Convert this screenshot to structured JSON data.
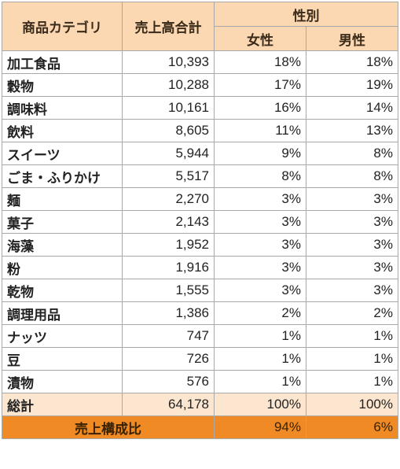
{
  "header": {
    "category": "商品カテゴリ",
    "sales_total": "売上高合計",
    "gender": "性別",
    "female": "女性",
    "male": "男性"
  },
  "rows": [
    {
      "category": "加工食品",
      "sales": "10,393",
      "female": "18%",
      "male": "18%"
    },
    {
      "category": "穀物",
      "sales": "10,288",
      "female": "17%",
      "male": "19%"
    },
    {
      "category": "調味料",
      "sales": "10,161",
      "female": "16%",
      "male": "14%"
    },
    {
      "category": "飲料",
      "sales": "8,605",
      "female": "11%",
      "male": "13%"
    },
    {
      "category": "スイーツ",
      "sales": "5,944",
      "female": "9%",
      "male": "8%"
    },
    {
      "category": "ごま・ふりかけ",
      "sales": "5,517",
      "female": "8%",
      "male": "8%"
    },
    {
      "category": "麺",
      "sales": "2,270",
      "female": "3%",
      "male": "3%"
    },
    {
      "category": "菓子",
      "sales": "2,143",
      "female": "3%",
      "male": "3%"
    },
    {
      "category": "海藻",
      "sales": "1,952",
      "female": "3%",
      "male": "3%"
    },
    {
      "category": "粉",
      "sales": "1,916",
      "female": "3%",
      "male": "3%"
    },
    {
      "category": "乾物",
      "sales": "1,555",
      "female": "3%",
      "male": "3%"
    },
    {
      "category": "調理用品",
      "sales": "1,386",
      "female": "2%",
      "male": "2%"
    },
    {
      "category": "ナッツ",
      "sales": "747",
      "female": "1%",
      "male": "1%"
    },
    {
      "category": "豆",
      "sales": "726",
      "female": "1%",
      "male": "1%"
    },
    {
      "category": "漬物",
      "sales": "576",
      "female": "1%",
      "male": "1%"
    }
  ],
  "total": {
    "category": "総計",
    "sales": "64,178",
    "female": "100%",
    "male": "100%"
  },
  "ratio": {
    "label": "売上構成比",
    "female": "94%",
    "male": "6%"
  },
  "colors": {
    "header_bg": "#fbd7b2",
    "total_bg": "#fce6d0",
    "ratio_bg": "#f08a24",
    "border": "#a8a8a8"
  }
}
